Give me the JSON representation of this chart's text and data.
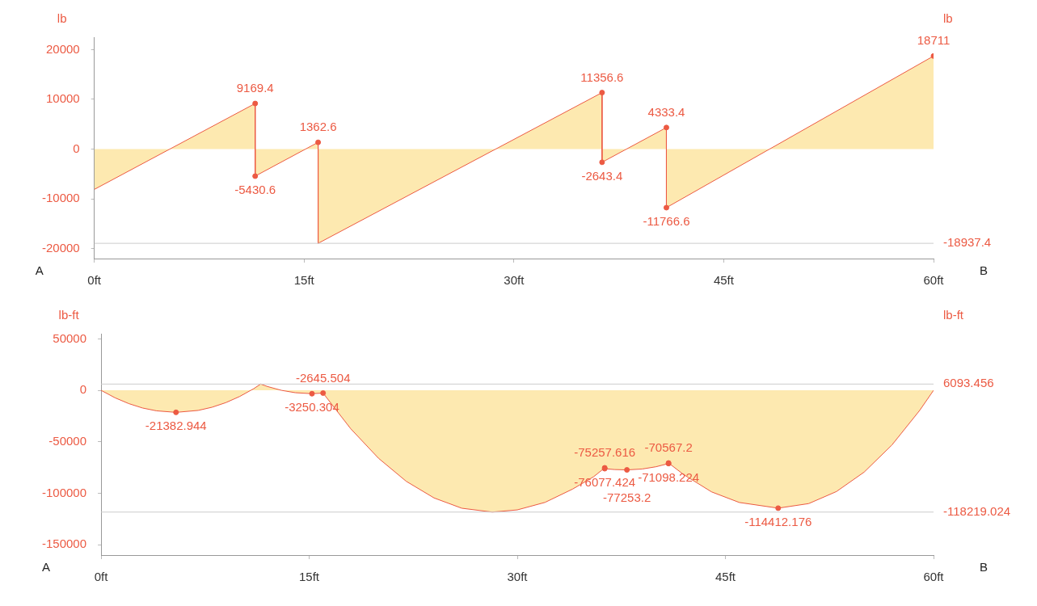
{
  "chart_data": [
    {
      "type": "area",
      "ylabel": "lb",
      "y2label": "lb",
      "annotations": [
        "A",
        "B"
      ],
      "xlim": [
        0,
        60
      ],
      "xticks": [
        {
          "value": 0,
          "label": "0ft"
        },
        {
          "value": 15,
          "label": "15ft"
        },
        {
          "value": 30,
          "label": "30ft"
        },
        {
          "value": 45,
          "label": "45ft"
        },
        {
          "value": 60,
          "label": "60ft"
        }
      ],
      "ylim": [
        -22000,
        22500
      ],
      "yticks": [
        20000,
        10000,
        0,
        -10000,
        -20000
      ],
      "grid": false,
      "legend": false,
      "marker": "circle",
      "series": [
        {
          "color": "#ec5a43",
          "x": [
            0,
            11.5,
            11.5,
            16,
            16,
            36.3,
            36.3,
            40.9,
            40.9,
            60
          ],
          "values": [
            -8100,
            9169.4,
            -5430.6,
            1362.6,
            -18937.4,
            11356.6,
            -2643.4,
            4333.4,
            -11766.6,
            18711
          ],
          "value_labels": [
            null,
            "9169.4",
            "-5430.6",
            "1362.6",
            null,
            "11356.6",
            "-2643.4",
            "4333.4",
            "-11766.6",
            "18711"
          ]
        }
      ],
      "ref_lines": [
        {
          "axis": "y",
          "value": -18937.4,
          "label": "-18937.4",
          "color": "#cccccc"
        }
      ]
    },
    {
      "type": "area",
      "ylabel": "lb-ft",
      "y2label": "lb-ft",
      "annotations": [
        "A",
        "B"
      ],
      "xlim": [
        0,
        60
      ],
      "xticks": [
        {
          "value": 0,
          "label": "0ft"
        },
        {
          "value": 15,
          "label": "15ft"
        },
        {
          "value": 30,
          "label": "30ft"
        },
        {
          "value": 45,
          "label": "45ft"
        },
        {
          "value": 60,
          "label": "60ft"
        }
      ],
      "ylim": [
        -160000,
        55000
      ],
      "yticks": [
        50000,
        0,
        -50000,
        -100000,
        -150000
      ],
      "grid": false,
      "legend": false,
      "series": [
        {
          "color": "#ec5a43",
          "x": [
            0,
            1,
            2,
            3,
            4,
            5.4,
            7,
            8,
            9,
            10,
            11,
            11.5,
            12,
            13,
            14,
            15.2,
            16,
            18,
            20,
            22,
            24,
            26,
            28.2,
            30,
            32,
            34,
            35.5,
            36.3,
            36.3,
            37,
            37.9,
            39,
            40,
            40.9,
            40.9,
            42,
            44,
            46,
            48.8,
            51,
            53,
            55,
            57,
            59,
            60
          ],
          "values": [
            0,
            -7200,
            -12900,
            -17200,
            -19900,
            -21382.944,
            -19500,
            -16400,
            -11900,
            -5900,
            1600,
            6093.456,
            3700,
            0,
            -2300,
            -3250.304,
            -2645.504,
            -37400,
            -66000,
            -88400,
            -104500,
            -114500,
            -118219.024,
            -116100,
            -108800,
            -95800,
            -83900,
            -75257.616,
            -76077.424,
            -76900,
            -77253.2,
            -76400,
            -74200,
            -71098.224,
            -70567.2,
            -81900,
            -98600,
            -108900,
            -114412.176,
            -110000,
            -98300,
            -79400,
            -53100,
            -19500,
            0
          ],
          "value_labels": [
            null,
            null,
            null,
            null,
            null,
            "-21382.944",
            null,
            null,
            null,
            null,
            null,
            null,
            null,
            null,
            null,
            "-3250.304",
            "-2645.504",
            null,
            null,
            null,
            null,
            null,
            null,
            null,
            null,
            null,
            null,
            "-75257.616",
            "-76077.424",
            null,
            "-77253.2",
            null,
            null,
            "-71098.224",
            "-70567.2",
            null,
            null,
            null,
            "-114412.176",
            null,
            null,
            null,
            null,
            null,
            null
          ]
        }
      ],
      "ref_lines": [
        {
          "axis": "y",
          "value": 6093.456,
          "label": "6093.456",
          "color": "#cccccc"
        },
        {
          "axis": "y",
          "value": -118219.024,
          "label": "-118219.024",
          "color": "#cccccc"
        }
      ]
    }
  ]
}
